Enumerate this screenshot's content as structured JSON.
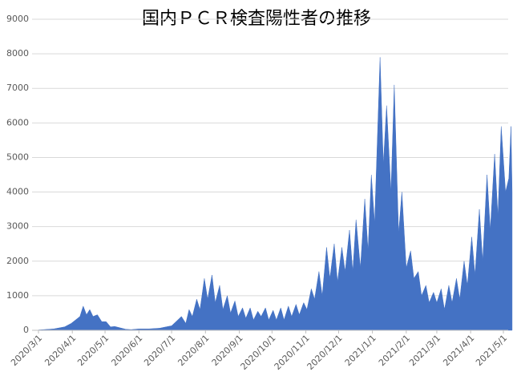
{
  "chart_data": {
    "type": "area",
    "title": "国内ＰＣＲ検査陽性者の推移",
    "color": "#4472c4",
    "grid": true,
    "x": [
      "2020/3/1",
      "2020/3/15",
      "2020/3/25",
      "2020/3/31",
      "2020/4/4",
      "2020/4/8",
      "2020/4/11",
      "2020/4/14",
      "2020/4/17",
      "2020/4/20",
      "2020/4/24",
      "2020/4/28",
      "2020/5/2",
      "2020/5/6",
      "2020/5/10",
      "2020/5/15",
      "2020/5/20",
      "2020/5/25",
      "2020/6/1",
      "2020/6/10",
      "2020/6/20",
      "2020/6/26",
      "2020/7/1",
      "2020/7/5",
      "2020/7/10",
      "2020/7/14",
      "2020/7/17",
      "2020/7/20",
      "2020/7/24",
      "2020/7/27",
      "2020/7/31",
      "2020/8/3",
      "2020/8/7",
      "2020/8/10",
      "2020/8/14",
      "2020/8/17",
      "2020/8/21",
      "2020/8/24",
      "2020/8/28",
      "2020/8/31",
      "2020/9/4",
      "2020/9/7",
      "2020/9/11",
      "2020/9/14",
      "2020/9/18",
      "2020/9/21",
      "2020/9/25",
      "2020/9/28",
      "2020/10/2",
      "2020/10/5",
      "2020/10/9",
      "2020/10/12",
      "2020/10/16",
      "2020/10/19",
      "2020/10/23",
      "2020/10/26",
      "2020/10/30",
      "2020/11/2",
      "2020/11/6",
      "2020/11/9",
      "2020/11/13",
      "2020/11/16",
      "2020/11/20",
      "2020/11/23",
      "2020/11/27",
      "2020/11/30",
      "2020/12/4",
      "2020/12/7",
      "2020/12/11",
      "2020/12/14",
      "2020/12/17",
      "2020/12/21",
      "2020/12/25",
      "2020/12/28",
      "2020/12/31",
      "2021/1/3",
      "2021/1/8",
      "2021/1/11",
      "2021/1/14",
      "2021/1/18",
      "2021/1/21",
      "2021/1/25",
      "2021/1/28",
      "2021/2/1",
      "2021/2/5",
      "2021/2/8",
      "2021/2/12",
      "2021/2/15",
      "2021/2/19",
      "2021/2/22",
      "2021/2/26",
      "2021/3/1",
      "2021/3/5",
      "2021/3/8",
      "2021/3/12",
      "2021/3/15",
      "2021/3/19",
      "2021/3/22",
      "2021/3/26",
      "2021/3/29",
      "2021/4/2",
      "2021/4/5",
      "2021/4/9",
      "2021/4/12",
      "2021/4/16",
      "2021/4/19",
      "2021/4/23",
      "2021/4/26",
      "2021/4/29",
      "2021/5/3",
      "2021/5/6",
      "2021/5/8",
      "2021/5/9"
    ],
    "values": [
      10,
      40,
      100,
      200,
      300,
      400,
      700,
      450,
      600,
      400,
      450,
      250,
      250,
      100,
      110,
      70,
      30,
      20,
      40,
      40,
      60,
      100,
      130,
      250,
      400,
      200,
      600,
      400,
      900,
      600,
      1500,
      900,
      1600,
      800,
      1300,
      600,
      1000,
      500,
      850,
      400,
      650,
      350,
      650,
      300,
      550,
      400,
      650,
      300,
      580,
      300,
      650,
      300,
      700,
      400,
      750,
      450,
      800,
      600,
      1200,
      900,
      1700,
      1000,
      2400,
      1500,
      2500,
      1400,
      2400,
      1700,
      2900,
      1700,
      3200,
      1800,
      3800,
      2300,
      4500,
      3100,
      7900,
      4800,
      6500,
      4000,
      7100,
      2800,
      4000,
      1800,
      2300,
      1500,
      1700,
      1000,
      1300,
      800,
      1100,
      800,
      1200,
      600,
      1300,
      800,
      1500,
      900,
      2000,
      1300,
      2700,
      1600,
      3500,
      2000,
      4500,
      2900,
      5100,
      3300,
      5900,
      4000,
      4400,
      5900,
      4000
    ],
    "xlim": [
      "2020/3/1",
      "2021/5/1"
    ],
    "xticks": [
      "2020/3/1",
      "2020/4/1",
      "2020/5/1",
      "2020/6/1",
      "2020/7/1",
      "2020/8/1",
      "2020/9/1",
      "2020/10/1",
      "2020/11/1",
      "2020/12/1",
      "2021/1/1",
      "2021/2/1",
      "2021/3/1",
      "2021/4/1",
      "2021/5/1"
    ],
    "ylim": [
      0,
      9000
    ],
    "yticks": [
      0,
      1000,
      2000,
      3000,
      4000,
      5000,
      6000,
      7000,
      8000,
      9000
    ]
  }
}
